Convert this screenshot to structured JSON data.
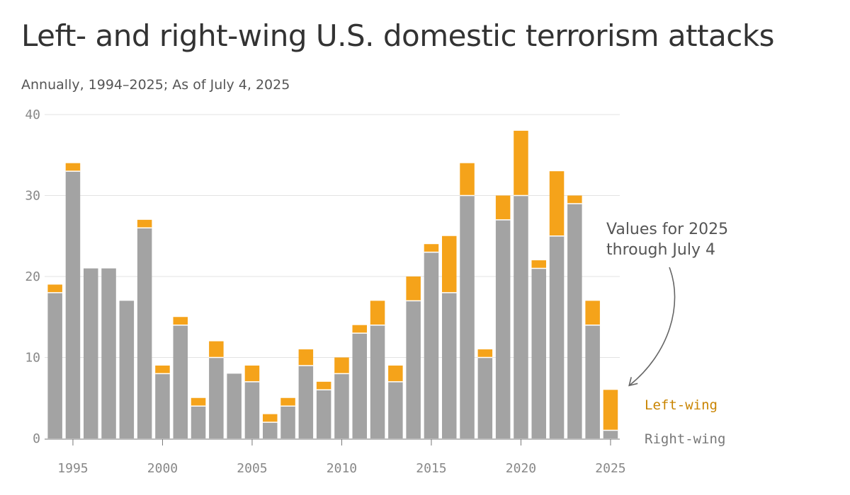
{
  "chart_data": {
    "type": "bar",
    "stacked": true,
    "title": "Left- and right-wing U.S. domestic terrorism attacks",
    "subtitle": "Annually, 1994–2025; As of July 4, 2025",
    "x": [
      1994,
      1995,
      1996,
      1997,
      1998,
      1999,
      2000,
      2001,
      2002,
      2003,
      2004,
      2005,
      2006,
      2007,
      2008,
      2009,
      2010,
      2011,
      2012,
      2013,
      2014,
      2015,
      2016,
      2017,
      2018,
      2019,
      2020,
      2021,
      2022,
      2023,
      2024,
      2025
    ],
    "series": [
      {
        "name": "Right-wing",
        "color": "#a3a3a3",
        "values": [
          18,
          33,
          21,
          21,
          17,
          26,
          8,
          14,
          4,
          10,
          8,
          7,
          2,
          4,
          9,
          6,
          8,
          13,
          14,
          7,
          17,
          23,
          18,
          30,
          10,
          27,
          30,
          21,
          25,
          29,
          14,
          1
        ]
      },
      {
        "name": "Left-wing",
        "color": "#f5a31a",
        "values": [
          1,
          1,
          0,
          0,
          0,
          1,
          1,
          1,
          1,
          2,
          0,
          2,
          1,
          1,
          2,
          1,
          2,
          1,
          3,
          2,
          3,
          1,
          7,
          4,
          1,
          3,
          8,
          1,
          8,
          1,
          3,
          5
        ]
      }
    ],
    "ylim": [
      0,
      40
    ],
    "yticks": [
      0,
      10,
      20,
      30,
      40
    ],
    "xticks": [
      1995,
      2000,
      2005,
      2010,
      2015,
      2020,
      2025
    ],
    "legend": {
      "position": "bottom-right",
      "items": [
        {
          "label": "Left-wing",
          "color": "#c98400"
        },
        {
          "label": "Right-wing",
          "color": "#777777"
        }
      ]
    },
    "annotation": {
      "lines": [
        "Values for 2025",
        "through July 4"
      ],
      "target_year": 2025
    }
  }
}
